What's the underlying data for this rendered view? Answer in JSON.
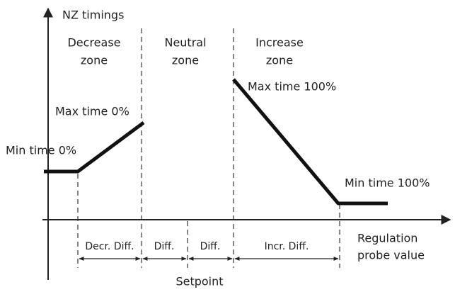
{
  "axes": {
    "y_label": "NZ timings",
    "x_label": [
      "Regulation",
      "probe value"
    ],
    "setpoint": "Setpoint"
  },
  "zones": [
    [
      "Decrease",
      "zone"
    ],
    [
      "Neutral",
      "zone"
    ],
    [
      "Increase",
      "zone"
    ]
  ],
  "points": [
    "Max time 0%",
    "Min time 0%",
    "Max time 100%",
    "Min time 100%"
  ],
  "segments": [
    "Decr. Diff.",
    "Diff.",
    "Diff.",
    "Incr. Diff."
  ]
}
